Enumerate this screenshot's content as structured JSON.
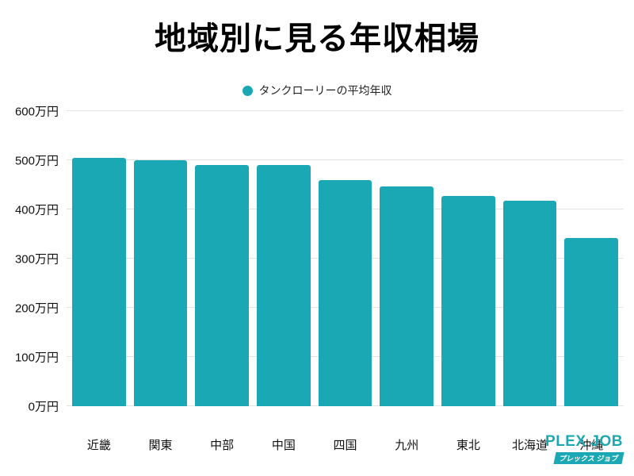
{
  "title": "地域別に見る年収相場",
  "legend": {
    "label": "タンクローリーの平均年収",
    "color": "#1BA8B5"
  },
  "chart_data": {
    "type": "bar",
    "title": "地域別に見る年収相場",
    "series_name": "タンクローリーの平均年収",
    "categories": [
      "近畿",
      "関東",
      "中部",
      "中国",
      "四国",
      "九州",
      "東北",
      "北海道",
      "沖縄"
    ],
    "values": [
      505,
      500,
      491,
      490,
      459,
      447,
      428,
      418,
      342
    ],
    "unit": "万円",
    "xlabel": "",
    "ylabel": "",
    "ylim": [
      0,
      600
    ],
    "y_ticks": [
      {
        "label": "0万円",
        "value": 0
      },
      {
        "label": "100万円",
        "value": 100
      },
      {
        "label": "200万円",
        "value": 200
      },
      {
        "label": "300万円",
        "value": 300
      },
      {
        "label": "400万円",
        "value": 400
      },
      {
        "label": "500万円",
        "value": 500
      },
      {
        "label": "600万円",
        "value": 600
      }
    ],
    "bar_color": "#1BA8B5",
    "grid": true,
    "legend_position": "top"
  },
  "logo": {
    "name": "PLEX JOB",
    "subtitle": "プレックス ジョブ",
    "color": "#1BA8B5"
  }
}
